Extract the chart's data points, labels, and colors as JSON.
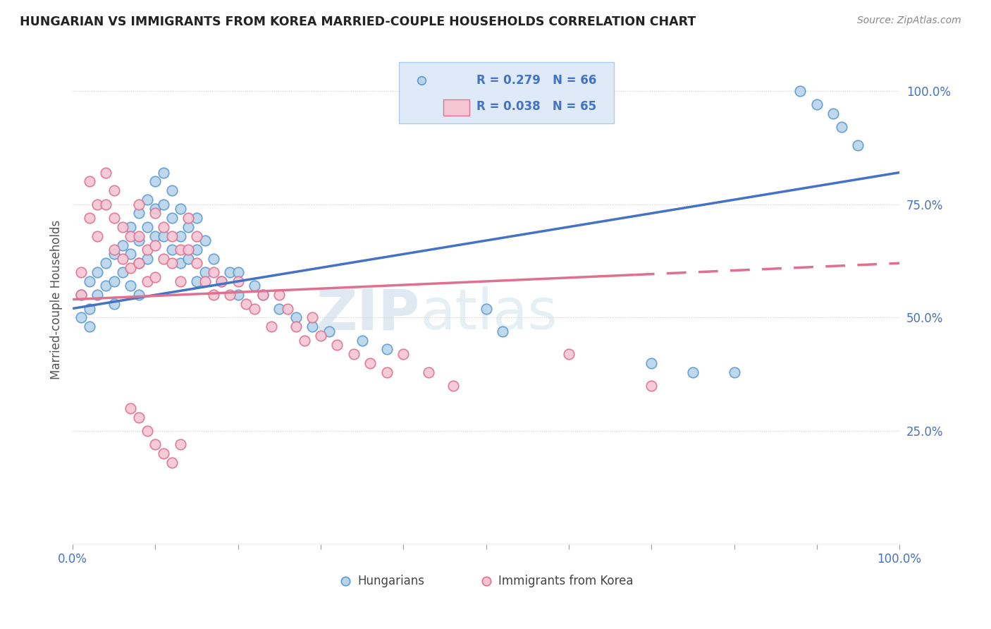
{
  "title": "HUNGARIAN VS IMMIGRANTS FROM KOREA MARRIED-COUPLE HOUSEHOLDS CORRELATION CHART",
  "source": "Source: ZipAtlas.com",
  "ylabel": "Married-couple Households",
  "R_hungarian": 0.279,
  "N_hungarian": 66,
  "R_korea": 0.038,
  "N_korea": 65,
  "color_hungarian_fill": "#b8d4ea",
  "color_hungarian_edge": "#5b9bd5",
  "color_korea_fill": "#f4c6d4",
  "color_korea_edge": "#e07090",
  "color_line_hungarian": "#4472c4",
  "color_line_korea": "#e07090",
  "color_text_blue": "#4472c4",
  "color_axis_label": "#555555",
  "color_watermark": "#c8d8e8",
  "xlim": [
    0.0,
    1.0
  ],
  "ylim": [
    0.0,
    1.0
  ],
  "hungarian_x": [
    0.01,
    0.01,
    0.02,
    0.02,
    0.02,
    0.03,
    0.03,
    0.04,
    0.04,
    0.05,
    0.05,
    0.05,
    0.06,
    0.06,
    0.07,
    0.07,
    0.07,
    0.08,
    0.08,
    0.08,
    0.08,
    0.09,
    0.09,
    0.09,
    0.1,
    0.1,
    0.1,
    0.11,
    0.11,
    0.11,
    0.12,
    0.12,
    0.12,
    0.13,
    0.13,
    0.13,
    0.14,
    0.14,
    0.15,
    0.15,
    0.15,
    0.16,
    0.16,
    0.17,
    0.18,
    0.19,
    0.2,
    0.2,
    0.22,
    0.23,
    0.25,
    0.27,
    0.29,
    0.31,
    0.35,
    0.38,
    0.5,
    0.52,
    0.88,
    0.9,
    0.92,
    0.93,
    0.95,
    0.7,
    0.75,
    0.8
  ],
  "hungarian_y": [
    0.55,
    0.5,
    0.58,
    0.52,
    0.48,
    0.6,
    0.55,
    0.62,
    0.57,
    0.64,
    0.58,
    0.53,
    0.66,
    0.6,
    0.7,
    0.64,
    0.57,
    0.73,
    0.67,
    0.62,
    0.55,
    0.76,
    0.7,
    0.63,
    0.8,
    0.74,
    0.68,
    0.82,
    0.75,
    0.68,
    0.78,
    0.72,
    0.65,
    0.74,
    0.68,
    0.62,
    0.7,
    0.63,
    0.72,
    0.65,
    0.58,
    0.67,
    0.6,
    0.63,
    0.58,
    0.6,
    0.55,
    0.6,
    0.57,
    0.55,
    0.52,
    0.5,
    0.48,
    0.47,
    0.45,
    0.43,
    0.52,
    0.47,
    1.0,
    0.97,
    0.95,
    0.92,
    0.88,
    0.4,
    0.38,
    0.38
  ],
  "korea_x": [
    0.01,
    0.01,
    0.02,
    0.02,
    0.03,
    0.03,
    0.04,
    0.04,
    0.05,
    0.05,
    0.05,
    0.06,
    0.06,
    0.07,
    0.07,
    0.08,
    0.08,
    0.08,
    0.09,
    0.09,
    0.1,
    0.1,
    0.1,
    0.11,
    0.11,
    0.12,
    0.12,
    0.13,
    0.13,
    0.14,
    0.14,
    0.15,
    0.15,
    0.16,
    0.17,
    0.17,
    0.18,
    0.19,
    0.2,
    0.21,
    0.22,
    0.23,
    0.24,
    0.25,
    0.26,
    0.27,
    0.28,
    0.29,
    0.3,
    0.32,
    0.34,
    0.36,
    0.38,
    0.4,
    0.43,
    0.46,
    0.07,
    0.08,
    0.09,
    0.1,
    0.11,
    0.12,
    0.13,
    0.6,
    0.7
  ],
  "korea_y": [
    0.6,
    0.55,
    0.8,
    0.72,
    0.75,
    0.68,
    0.82,
    0.75,
    0.78,
    0.72,
    0.65,
    0.7,
    0.63,
    0.68,
    0.61,
    0.75,
    0.68,
    0.62,
    0.65,
    0.58,
    0.73,
    0.66,
    0.59,
    0.7,
    0.63,
    0.68,
    0.62,
    0.65,
    0.58,
    0.72,
    0.65,
    0.68,
    0.62,
    0.58,
    0.55,
    0.6,
    0.58,
    0.55,
    0.58,
    0.53,
    0.52,
    0.55,
    0.48,
    0.55,
    0.52,
    0.48,
    0.45,
    0.5,
    0.46,
    0.44,
    0.42,
    0.4,
    0.38,
    0.42,
    0.38,
    0.35,
    0.3,
    0.28,
    0.25,
    0.22,
    0.2,
    0.18,
    0.22,
    0.42,
    0.35
  ]
}
